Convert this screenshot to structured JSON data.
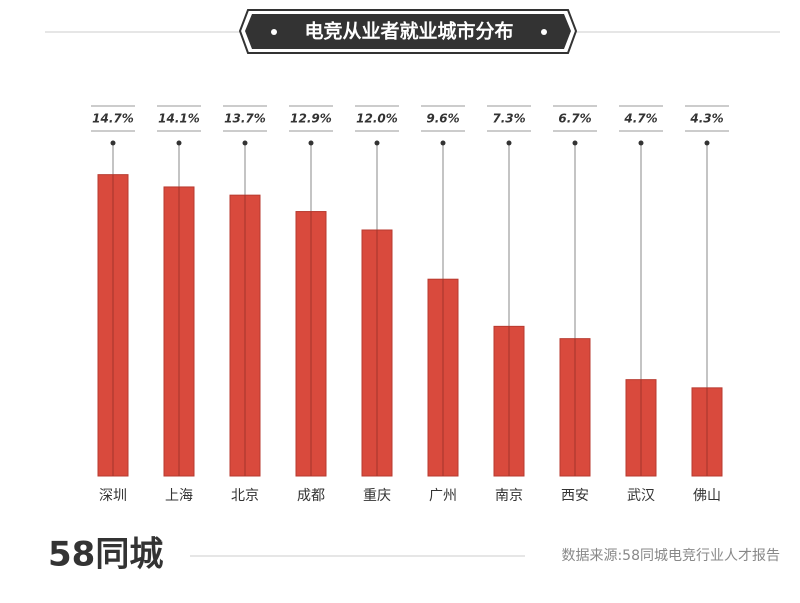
{
  "chart_data": {
    "type": "bar",
    "title": "电竞从业者就业城市分布",
    "categories": [
      "深圳",
      "上海",
      "北京",
      "成都",
      "重庆",
      "广州",
      "南京",
      "西安",
      "武汉",
      "佛山"
    ],
    "values": [
      14.7,
      14.1,
      13.7,
      12.9,
      12.0,
      9.6,
      7.3,
      6.7,
      4.7,
      4.3
    ],
    "value_labels": [
      "14.7%",
      "14.1%",
      "13.7%",
      "12.9%",
      "12.0%",
      "9.6%",
      "7.3%",
      "6.7%",
      "4.7%",
      "4.3%"
    ],
    "color": "#d94a3d",
    "ylim": [
      0,
      16
    ]
  },
  "logo": "58同城",
  "source": "数据来源:58同城电竞行业人才报告"
}
